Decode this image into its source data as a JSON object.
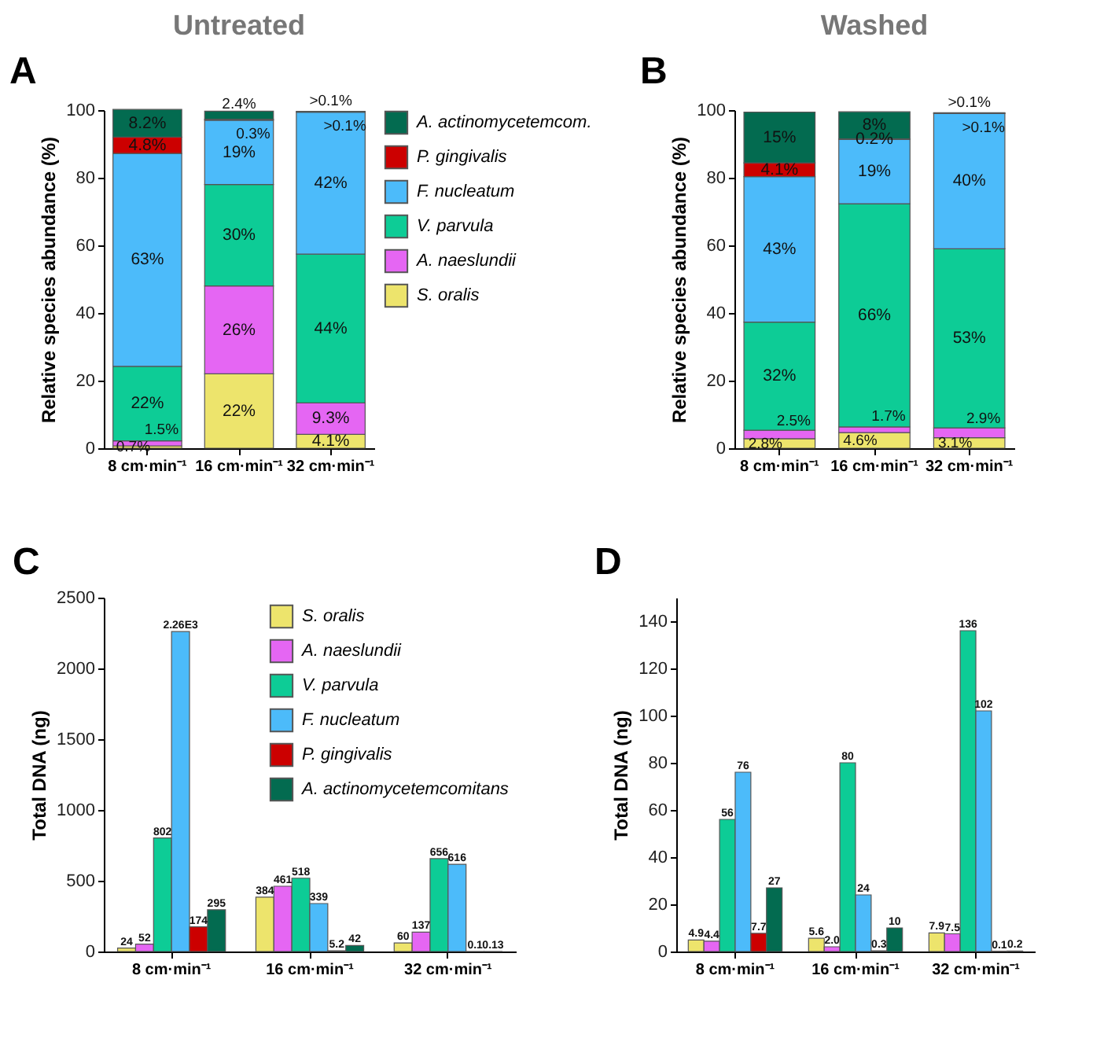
{
  "chart_data": [
    {
      "type": "bar",
      "title": "Untreated",
      "annotations": [
        "A"
      ],
      "stacked": true,
      "legend": "right",
      "ylabel": "Relative species abundance (%)",
      "categories": [
        "8 cm·min⁻¹",
        "16 cm·min⁻¹",
        "32 cm·min⁻¹"
      ],
      "ylim": [
        0,
        100
      ],
      "yticks": [
        0,
        20,
        40,
        60,
        80,
        100
      ],
      "series": [
        {
          "name": "S. oralis",
          "color": "#ede46c",
          "values": [
            0.7,
            22,
            4.1
          ],
          "value_labels": [
            "0.7%",
            "22%",
            "4.1%"
          ]
        },
        {
          "name": "A. naeslundii",
          "color": "#e566f3",
          "values": [
            1.5,
            26,
            9.3
          ],
          "value_labels": [
            "1.5%",
            "26%",
            "9.3%"
          ]
        },
        {
          "name": "V. parvula",
          "color": "#0dcc96",
          "values": [
            22,
            30,
            44
          ],
          "value_labels": [
            "22%",
            "30%",
            "44%"
          ]
        },
        {
          "name": "F. nucleatum",
          "color": "#4cbbfa",
          "values": [
            63,
            19,
            42
          ],
          "value_labels": [
            "63%",
            "19%",
            "42%"
          ]
        },
        {
          "name": "P. gingivalis",
          "color": "#cc0000",
          "values": [
            4.8,
            0.3,
            0.1
          ],
          "value_labels": [
            "4.8%",
            "0.3%",
            ">0.1%"
          ]
        },
        {
          "name": "A. actinomycetemcom.",
          "color": "#036b50",
          "values": [
            8.2,
            2.4,
            0.1
          ],
          "value_labels": [
            "8.2%",
            "2.4%",
            ">0.1%"
          ]
        }
      ]
    },
    {
      "type": "bar",
      "title": "Washed",
      "annotations": [
        "B"
      ],
      "stacked": true,
      "ylabel": "Relative species abundance (%)",
      "categories": [
        "8 cm·min⁻¹",
        "16 cm·min⁻¹",
        "32 cm·min⁻¹"
      ],
      "ylim": [
        0,
        100
      ],
      "yticks": [
        0,
        20,
        40,
        60,
        80,
        100
      ],
      "series": [
        {
          "color": "#ede46c",
          "values": [
            2.8,
            4.6,
            3.1
          ],
          "value_labels": [
            "2.8%",
            "4.6%",
            "3.1%"
          ]
        },
        {
          "color": "#e566f3",
          "values": [
            2.5,
            1.7,
            2.9
          ],
          "value_labels": [
            "2.5%",
            "1.7%",
            "2.9%"
          ]
        },
        {
          "color": "#0dcc96",
          "values": [
            32,
            66,
            53
          ],
          "value_labels": [
            "32%",
            "66%",
            "53%"
          ]
        },
        {
          "color": "#4cbbfa",
          "values": [
            43,
            19,
            40
          ],
          "value_labels": [
            "43%",
            "19%",
            "40%"
          ]
        },
        {
          "color": "#cc0000",
          "values": [
            4.1,
            0.2,
            0.1
          ],
          "value_labels": [
            "4.1%",
            "0.2%",
            ">0.1%"
          ]
        },
        {
          "color": "#036b50",
          "values": [
            15,
            8,
            0.1
          ],
          "value_labels": [
            "15%",
            "8%",
            ">0.1%"
          ]
        }
      ]
    },
    {
      "type": "bar",
      "annotations": [
        "C"
      ],
      "legend": "top right",
      "ylabel": "Total DNA (ng)",
      "categories": [
        "8 cm·min⁻¹",
        "16 cm·min⁻¹",
        "32 cm·min⁻¹"
      ],
      "ylim": [
        0,
        2500
      ],
      "yticks": [
        0,
        500,
        1000,
        1500,
        2000,
        2500
      ],
      "series": [
        {
          "name": "S. oralis",
          "color": "#ede46c",
          "values": [
            24,
            384,
            60
          ],
          "value_labels": [
            "24",
            "384",
            "60"
          ]
        },
        {
          "name": "A. naeslundii",
          "color": "#e566f3",
          "values": [
            52,
            461,
            137
          ],
          "value_labels": [
            "52",
            "461",
            "137"
          ]
        },
        {
          "name": "V. parvula",
          "color": "#0dcc96",
          "values": [
            802,
            518,
            656
          ],
          "value_labels": [
            "802",
            "518",
            "656"
          ]
        },
        {
          "name": "F. nucleatum",
          "color": "#4cbbfa",
          "values": [
            2260,
            339,
            616
          ],
          "value_labels": [
            "2.26E3",
            "339",
            "616"
          ]
        },
        {
          "name": "P. gingivalis",
          "color": "#cc0000",
          "values": [
            174,
            5.2,
            0.1
          ],
          "value_labels": [
            "174",
            "5.2",
            "0.1"
          ]
        },
        {
          "name": "A. actinomycetemcomitans",
          "color": "#036b50",
          "values": [
            295,
            42,
            0.13
          ],
          "value_labels": [
            "295",
            "42",
            "0.13"
          ]
        }
      ]
    },
    {
      "type": "bar",
      "annotations": [
        "D"
      ],
      "ylabel": "Total DNA (ng)",
      "categories": [
        "8 cm·min⁻¹",
        "16 cm·min⁻¹",
        "32 cm·min⁻¹"
      ],
      "ylim": [
        0,
        150
      ],
      "yticks": [
        0,
        20,
        40,
        60,
        80,
        100,
        120,
        140
      ],
      "series": [
        {
          "color": "#ede46c",
          "values": [
            4.9,
            5.6,
            7.9
          ],
          "value_labels": [
            "4.9",
            "5.6",
            "7.9"
          ]
        },
        {
          "color": "#e566f3",
          "values": [
            4.4,
            2.0,
            7.5
          ],
          "value_labels": [
            "4.4",
            "2.0",
            "7.5"
          ]
        },
        {
          "color": "#0dcc96",
          "values": [
            56,
            80,
            136
          ],
          "value_labels": [
            "56",
            "80",
            "136"
          ]
        },
        {
          "color": "#4cbbfa",
          "values": [
            76,
            24,
            102
          ],
          "value_labels": [
            "76",
            "24",
            "102"
          ]
        },
        {
          "color": "#cc0000",
          "values": [
            7.7,
            0.3,
            0.1
          ],
          "value_labels": [
            "7.7",
            "0.3",
            "0.1"
          ]
        },
        {
          "color": "#036b50",
          "values": [
            27,
            10,
            0.2
          ],
          "value_labels": [
            "27",
            "10",
            "0.2"
          ]
        }
      ]
    }
  ]
}
